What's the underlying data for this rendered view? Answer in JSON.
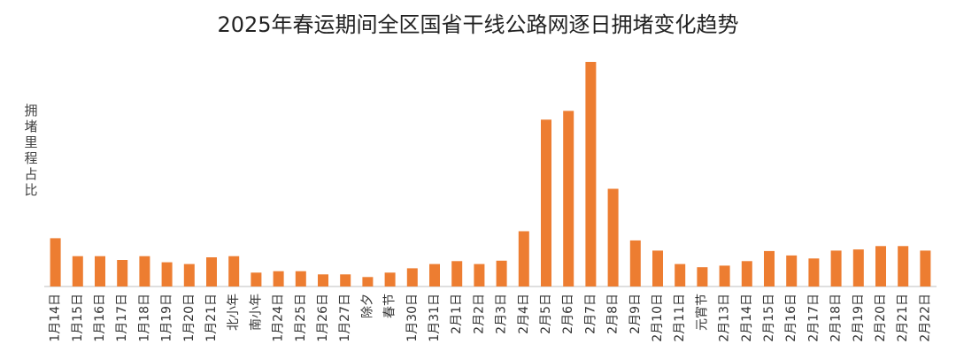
{
  "chart_data": {
    "type": "bar",
    "title": "2025年春运期间全区国省干线公路网逐日拥堵变化趋势",
    "xlabel": "",
    "ylabel": "拥堵里程占比",
    "color": "#ED7D31",
    "grid": false,
    "ylim": [
      0,
      100
    ],
    "categories": [
      "1月14日",
      "1月15日",
      "1月16日",
      "1月17日",
      "1月18日",
      "1月19日",
      "1月20日",
      "1月21日",
      "北小年",
      "南小年",
      "1月24日",
      "1月25日",
      "1月26日",
      "1月27日",
      "除夕",
      "春节",
      "1月30日",
      "1月31日",
      "2月1日",
      "2月2日",
      "2月3日",
      "2月4日",
      "2月5日",
      "2月6日",
      "2月7日",
      "2月8日",
      "2月9日",
      "2月10日",
      "2月11日",
      "元宵节",
      "2月13日",
      "2月14日",
      "2月15日",
      "2月16日",
      "2月17日",
      "2月18日",
      "2月19日",
      "2月20日",
      "2月21日",
      "2月22日"
    ],
    "values": [
      21.5,
      13.5,
      13.5,
      11.8,
      13.5,
      10.8,
      10.0,
      13.0,
      13.5,
      6.2,
      6.8,
      6.8,
      5.4,
      5.4,
      4.2,
      6.2,
      8.1,
      10.0,
      11.3,
      10.0,
      11.5,
      24.6,
      74.3,
      78.2,
      100.0,
      43.5,
      20.5,
      16.0,
      10.0,
      8.6,
      9.3,
      11.3,
      15.8,
      13.8,
      12.5,
      16.0,
      16.5,
      18.0,
      18.0,
      16.0
    ]
  }
}
